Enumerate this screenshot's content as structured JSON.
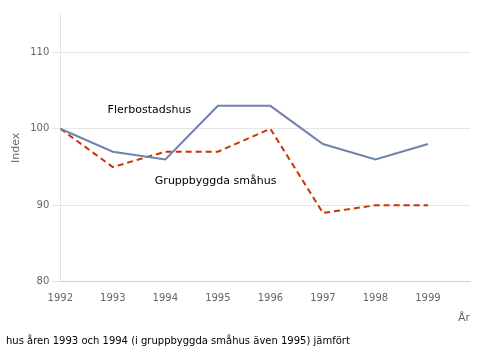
{
  "chart_data": {
    "type": "line",
    "x": [
      1992,
      1993,
      1994,
      1995,
      1996,
      1997,
      1998,
      1999
    ],
    "series": [
      {
        "name": "Flerbostadshus",
        "color": "#7080b0",
        "line_style": "solid",
        "values": [
          100,
          97,
          96,
          103,
          103,
          98,
          96,
          98
        ]
      },
      {
        "name": "Gruppbyggda småhus",
        "color": "#cc3300",
        "line_style": "dashed",
        "values": [
          100,
          95,
          97,
          97,
          100,
          89,
          90,
          90
        ]
      }
    ],
    "annotations": [
      {
        "text": "Flerbostadshus",
        "x": 1992.9,
        "y": 102.0
      },
      {
        "text": "Gruppbyggda småhus",
        "x": 1993.8,
        "y": 92.8
      }
    ],
    "y_label": "Index",
    "x_label": "År",
    "footer": "hus åren 1993 och 1994 (i gruppbyggda småhus även 1995) jämfört",
    "xlim": [
      1992,
      1999.8
    ],
    "xticks": [
      1992,
      1993,
      1994,
      1995,
      1996,
      1997,
      1998,
      1999
    ],
    "ylim": [
      80,
      115
    ],
    "yticks": [
      80,
      90,
      100,
      110
    ],
    "grid": "y",
    "legend": false
  }
}
